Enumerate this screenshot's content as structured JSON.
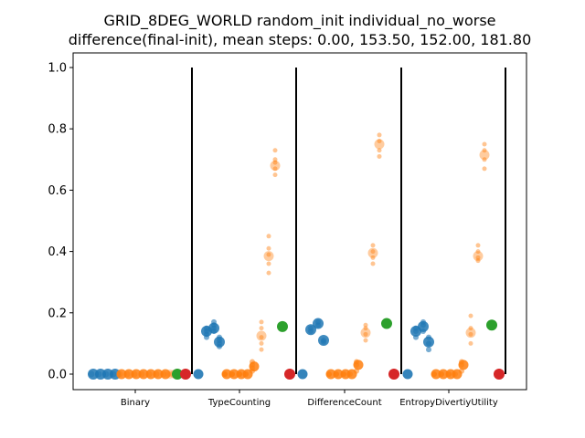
{
  "chart_data": {
    "type": "scatter",
    "title_lines": [
      "GRID_8DEG_WORLD random_init individual_no_worse",
      "difference(final-init), mean steps: 0.00, 153.50, 152.00, 181.80"
    ],
    "categories": [
      "Binary",
      "TypeCounting",
      "DifferenceCount",
      "EntropyDivertiyUtility"
    ],
    "yticks": [
      0.0,
      0.2,
      0.4,
      0.6,
      0.8,
      1.0
    ],
    "ylim": [
      -0.05,
      1.05
    ],
    "grid": false,
    "series_colors": {
      "blue": "#1f77b4",
      "orange": "#ff7f0e",
      "green": "#2ca02c",
      "red": "#d62728"
    },
    "groups": [
      {
        "name": "Binary",
        "blue": [
          0,
          0,
          0,
          0,
          0,
          0
        ],
        "blue_means": [
          0,
          0,
          0,
          0
        ],
        "orange": [
          0,
          0,
          0,
          0,
          0,
          0,
          0,
          0,
          0,
          0
        ],
        "orange_means": [
          0,
          0,
          0,
          0,
          0,
          0,
          0
        ],
        "orange_light": [
          0,
          0,
          0,
          0,
          0
        ],
        "orange_light_means": [
          0,
          0,
          0
        ],
        "green": 0,
        "red": 0
      },
      {
        "name": "TypeCounting",
        "blue": [
          0.0
        ],
        "blue_means": [
          0.0
        ],
        "blue_clusters": [
          {
            "mean": 0.14,
            "values": [
              0.13,
              0.14,
              0.15,
              0.12
            ]
          },
          {
            "mean": 0.15,
            "values": [
              0.14,
              0.16,
              0.17,
              0.15
            ]
          },
          {
            "mean": 0.105,
            "values": [
              0.09,
              0.1,
              0.11,
              0.12
            ]
          }
        ],
        "orange_clusters": [
          {
            "mean": 0.0,
            "values": [
              0.0,
              0.0,
              0.0
            ]
          },
          {
            "mean": 0.0,
            "values": [
              0.0,
              0.0,
              0.0
            ]
          },
          {
            "mean": 0.0,
            "values": [
              0.0,
              0.0,
              0.0
            ]
          },
          {
            "mean": 0.0,
            "values": [
              0.0,
              0.0
            ]
          },
          {
            "mean": 0.025,
            "values": [
              0.01,
              0.02,
              0.03,
              0.04
            ]
          }
        ],
        "orange_light_clusters": [
          {
            "mean": 0.125,
            "values": [
              0.08,
              0.1,
              0.12,
              0.15,
              0.17
            ]
          },
          {
            "mean": 0.385,
            "values": [
              0.33,
              0.36,
              0.39,
              0.41,
              0.45
            ]
          },
          {
            "mean": 0.68,
            "values": [
              0.65,
              0.67,
              0.69,
              0.7,
              0.73
            ]
          }
        ],
        "green": 0.155,
        "red": 0.0
      },
      {
        "name": "DifferenceCount",
        "blue": [
          0.0
        ],
        "blue_clusters": [
          {
            "mean": 0.145,
            "values": [
              0.14,
              0.15
            ]
          },
          {
            "mean": 0.165,
            "values": [
              0.16,
              0.17
            ]
          },
          {
            "mean": 0.11,
            "values": [
              0.105,
              0.11
            ]
          }
        ],
        "orange_clusters": [
          {
            "mean": 0.0,
            "values": [
              0.0,
              0.0
            ]
          },
          {
            "mean": 0.0,
            "values": [
              0.0,
              0.0
            ]
          },
          {
            "mean": 0.0,
            "values": [
              0.0,
              0.0
            ]
          },
          {
            "mean": 0.0,
            "values": [
              0.0
            ]
          },
          {
            "mean": 0.03,
            "values": [
              0.01,
              0.03,
              0.04
            ]
          }
        ],
        "orange_light_clusters": [
          {
            "mean": 0.135,
            "values": [
              0.11,
              0.13,
              0.15,
              0.16
            ]
          },
          {
            "mean": 0.395,
            "values": [
              0.36,
              0.38,
              0.4,
              0.42
            ]
          },
          {
            "mean": 0.75,
            "values": [
              0.71,
              0.73,
              0.76,
              0.78
            ]
          }
        ],
        "green": 0.165,
        "red": 0.0
      },
      {
        "name": "EntropyDivertiyUtility",
        "blue": [
          0.0
        ],
        "blue_clusters": [
          {
            "mean": 0.14,
            "values": [
              0.12,
              0.14,
              0.15
            ]
          },
          {
            "mean": 0.155,
            "values": [
              0.14,
              0.16,
              0.17
            ]
          },
          {
            "mean": 0.105,
            "values": [
              0.08,
              0.1,
              0.12
            ]
          }
        ],
        "orange_clusters": [
          {
            "mean": 0.0,
            "values": [
              0.0,
              0.0
            ]
          },
          {
            "mean": 0.0,
            "values": [
              0.0,
              0.0
            ]
          },
          {
            "mean": 0.0,
            "values": [
              0.0,
              0.0
            ]
          },
          {
            "mean": 0.0,
            "values": [
              0.0
            ]
          },
          {
            "mean": 0.03,
            "values": [
              0.01,
              0.03,
              0.04
            ]
          }
        ],
        "orange_light_clusters": [
          {
            "mean": 0.135,
            "values": [
              0.1,
              0.13,
              0.15,
              0.19
            ]
          },
          {
            "mean": 0.385,
            "values": [
              0.37,
              0.38,
              0.4,
              0.42
            ]
          },
          {
            "mean": 0.715,
            "values": [
              0.67,
              0.7,
              0.73,
              0.75
            ]
          }
        ],
        "green": 0.16,
        "red": 0.0
      }
    ]
  }
}
